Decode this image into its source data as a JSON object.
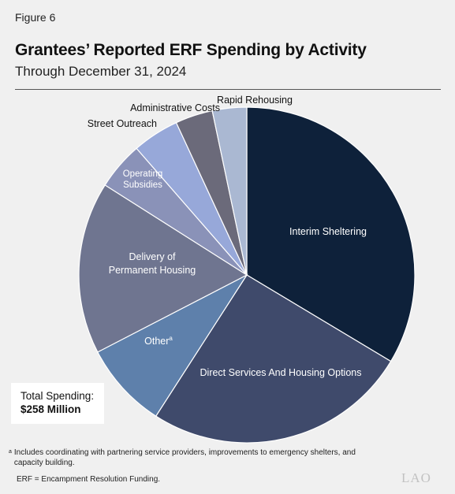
{
  "figure_label": "Figure 6",
  "title": "Grantees’ Reported ERF Spending by Activity",
  "subtitle": "Through December 31, 2024",
  "total": {
    "label": "Total Spending:",
    "amount": "$258 Million"
  },
  "footnote": {
    "marker": "a",
    "text": "Includes coordinating with partnering service providers, improvements to emergency shelters, and capacity building."
  },
  "erf_note": "ERF = Encampment Resolution Funding.",
  "logo": "LAO",
  "chart_data": {
    "type": "pie",
    "title": "Grantees’ Reported ERF Spending by Activity",
    "subtitle": "Through December 31, 2024",
    "total": "$258 Million",
    "units": "percent of total",
    "start_angle": "12 o'clock, clockwise",
    "slices": [
      {
        "label": "Interim Sheltering",
        "value": 33.6,
        "color": "#0e213a",
        "label_color": "#ffffff"
      },
      {
        "label": "Direct Services And Housing Options",
        "value": 25.5,
        "color": "#3f4a6b",
        "label_color": "#ffffff"
      },
      {
        "label": "Other",
        "label_sup": "a",
        "value": 8.3,
        "color": "#5e80ab",
        "label_color": "#ffffff"
      },
      {
        "label": "Delivery of Permanent Housing",
        "value": 16.6,
        "color": "#6f7590",
        "label_color": "#ffffff"
      },
      {
        "label": "Operating Subsidies",
        "value": 4.6,
        "color": "#8a92b8",
        "label_color": "#ffffff"
      },
      {
        "label": "Street Outreach",
        "value": 4.5,
        "color": "#97a8d9",
        "label_color": "#111111"
      },
      {
        "label": "Administrative Costs",
        "value": 3.6,
        "color": "#6b6a7a",
        "label_color": "#111111"
      },
      {
        "label": "Rapid Rehousing",
        "value": 3.3,
        "color": "#aab8d2",
        "label_color": "#111111"
      }
    ]
  }
}
